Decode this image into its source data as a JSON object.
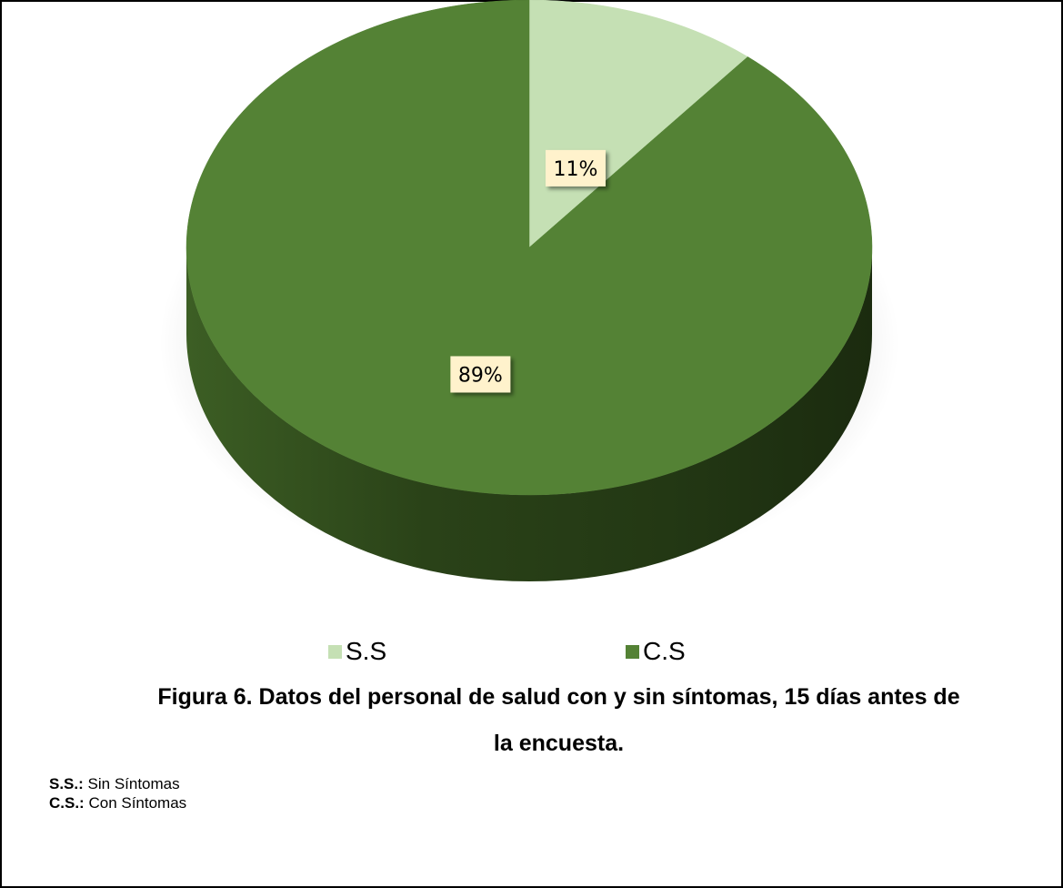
{
  "chart_data": {
    "type": "pie",
    "slices": [
      {
        "label": "S.S",
        "value": 11,
        "data_label": "11%",
        "color": "#c5e0b4"
      },
      {
        "label": "C.S",
        "value": 89,
        "data_label": "89%",
        "color": "#548235"
      }
    ],
    "legend": [
      "S.S",
      "C.S"
    ],
    "legend_position": "bottom"
  },
  "caption": {
    "line1": "Figura 6. Datos del personal de salud con y sin síntomas, 15 días antes de",
    "line2": "la encuesta."
  },
  "notes": [
    {
      "abbr": "S.S.:",
      "text": " Sin Síntomas"
    },
    {
      "abbr": "C.S.:",
      "text": " Con Síntomas"
    }
  ],
  "colors": {
    "ss_fill": "#c5e0b4",
    "cs_fill": "#548235",
    "cs_side": "#2f4a1d",
    "label_bg": "#fff2cc"
  }
}
